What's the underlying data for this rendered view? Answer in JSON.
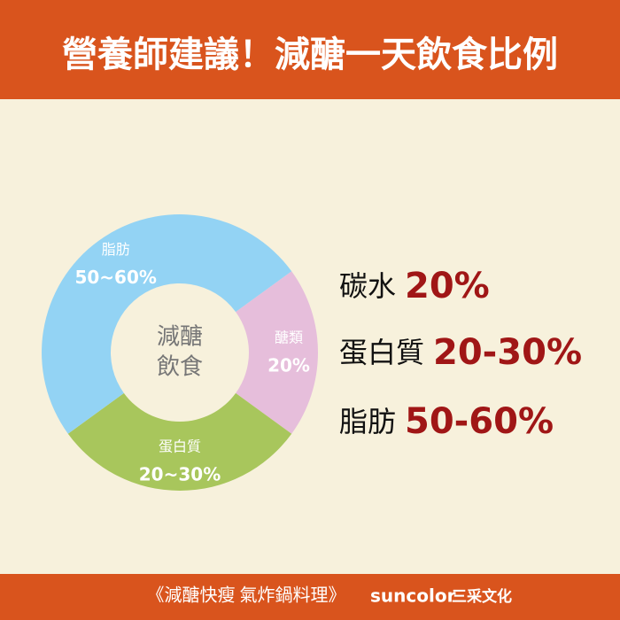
{
  "header": {
    "title": "營養師建議！減醣一天飲食比例"
  },
  "chart_data": {
    "type": "donut",
    "center_label": [
      "減醣",
      "飲食"
    ],
    "categories": [
      "醣類",
      "蛋白質",
      "脂肪"
    ],
    "values": [
      20,
      30,
      50
    ],
    "value_labels": [
      "20%",
      "20~30%",
      "50~60%"
    ],
    "colors": [
      "#e6bedb",
      "#a8c65c",
      "#93d3f4"
    ]
  },
  "summary": [
    {
      "name": "碳水",
      "value": "20%"
    },
    {
      "name": "蛋白質",
      "value": "20-30%"
    },
    {
      "name": "脂肪",
      "value": "50-60%"
    }
  ],
  "footer": {
    "book": "《減醣快瘦 氣炸鍋料理》",
    "brand": "suncolor",
    "publisher": "三采文化"
  }
}
